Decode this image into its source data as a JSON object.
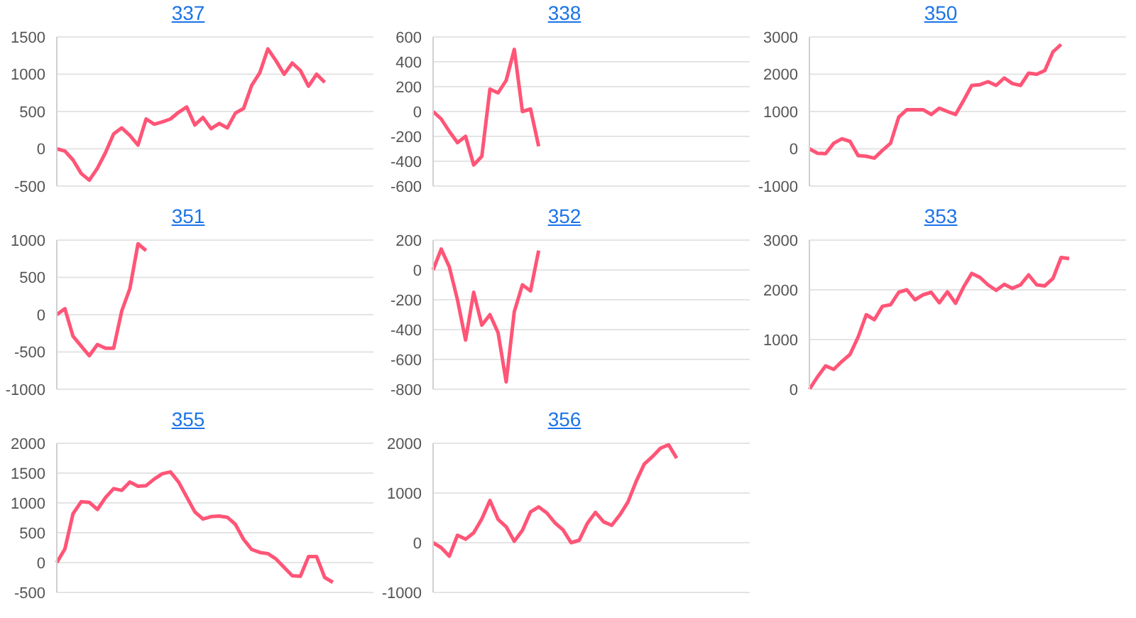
{
  "chart_data": [
    {
      "type": "line",
      "title": "337",
      "categories": [
        null,
        null,
        null,
        null,
        null,
        null,
        null,
        null,
        null,
        null,
        null,
        null,
        null,
        null,
        null,
        null,
        null,
        null,
        null,
        null,
        null,
        null,
        null,
        null,
        null,
        null,
        null,
        null,
        null,
        null,
        null,
        null,
        null,
        null,
        null,
        null,
        null,
        null,
        null,
        null
      ],
      "series": [
        {
          "color": "#ff5577",
          "values": [
            0,
            -30,
            -150,
            -330,
            -420,
            -260,
            -50,
            200,
            280,
            180,
            50,
            400,
            330,
            360,
            400,
            490,
            560,
            320,
            420,
            270,
            340,
            280,
            480,
            540,
            850,
            1020,
            1340,
            1180,
            1000,
            1150,
            1050,
            840,
            1000,
            890,
            null,
            null,
            null,
            null,
            null,
            null
          ]
        }
      ],
      "ylim": [
        -500,
        1500
      ],
      "yticks": [
        -500,
        0,
        500,
        1000,
        1500
      ],
      "grid": "y",
      "tick_labels": "y"
    },
    {
      "type": "line",
      "title": "338",
      "categories": [
        null,
        null,
        null,
        null,
        null,
        null,
        null,
        null,
        null,
        null,
        null,
        null,
        null,
        null,
        null,
        null,
        null,
        null,
        null,
        null,
        null,
        null,
        null,
        null,
        null,
        null,
        null,
        null,
        null,
        null,
        null,
        null,
        null,
        null,
        null,
        null,
        null,
        null,
        null,
        null
      ],
      "series": [
        {
          "color": "#ff5577",
          "values": [
            0,
            -60,
            -160,
            -250,
            -200,
            -430,
            -360,
            180,
            150,
            250,
            500,
            0,
            20,
            -280,
            null,
            null,
            null,
            null,
            null,
            null,
            null,
            null,
            null,
            null,
            null,
            null,
            null,
            null,
            null,
            null,
            null,
            null,
            null,
            null,
            null,
            null,
            null,
            null,
            null,
            null
          ]
        }
      ],
      "ylim": [
        -600,
        600
      ],
      "yticks": [
        -600,
        -400,
        -200,
        0,
        200,
        400,
        600
      ],
      "grid": "y",
      "tick_labels": "y"
    },
    {
      "type": "line",
      "title": "350",
      "categories": [
        null,
        null,
        null,
        null,
        null,
        null,
        null,
        null,
        null,
        null,
        null,
        null,
        null,
        null,
        null,
        null,
        null,
        null,
        null,
        null,
        null,
        null,
        null,
        null,
        null,
        null,
        null,
        null,
        null,
        null,
        null,
        null,
        null,
        null,
        null,
        null,
        null,
        null,
        null,
        null
      ],
      "series": [
        {
          "color": "#ff5577",
          "values": [
            0,
            -120,
            -130,
            150,
            270,
            200,
            -180,
            -200,
            -250,
            -40,
            150,
            850,
            1050,
            1050,
            1050,
            920,
            1090,
            1000,
            920,
            1300,
            1700,
            1720,
            1800,
            1700,
            1900,
            1750,
            1700,
            2030,
            2000,
            2100,
            2600,
            2800,
            null,
            null,
            null,
            null,
            null,
            null,
            null,
            null
          ]
        }
      ],
      "ylim": [
        -1000,
        3000
      ],
      "yticks": [
        -1000,
        0,
        1000,
        2000,
        3000
      ],
      "grid": "y",
      "tick_labels": "y"
    },
    {
      "type": "line",
      "title": "351",
      "categories": [
        null,
        null,
        null,
        null,
        null,
        null,
        null,
        null,
        null,
        null,
        null,
        null,
        null,
        null,
        null,
        null,
        null,
        null,
        null,
        null,
        null,
        null,
        null,
        null,
        null,
        null,
        null,
        null,
        null,
        null,
        null,
        null,
        null,
        null,
        null,
        null,
        null,
        null,
        null,
        null
      ],
      "series": [
        {
          "color": "#ff5577",
          "values": [
            0,
            80,
            -290,
            -420,
            -550,
            -400,
            -450,
            -450,
            50,
            350,
            950,
            860,
            null,
            null,
            null,
            null,
            null,
            null,
            null,
            null,
            null,
            null,
            null,
            null,
            null,
            null,
            null,
            null,
            null,
            null,
            null,
            null,
            null,
            null,
            null,
            null,
            null,
            null,
            null,
            null
          ]
        }
      ],
      "ylim": [
        -1000,
        1000
      ],
      "yticks": [
        -1000,
        -500,
        0,
        500,
        1000
      ],
      "grid": "y",
      "tick_labels": "y"
    },
    {
      "type": "line",
      "title": "352",
      "categories": [
        null,
        null,
        null,
        null,
        null,
        null,
        null,
        null,
        null,
        null,
        null,
        null,
        null,
        null,
        null,
        null,
        null,
        null,
        null,
        null,
        null,
        null,
        null,
        null,
        null,
        null,
        null,
        null,
        null,
        null,
        null,
        null,
        null,
        null,
        null,
        null,
        null,
        null,
        null,
        null
      ],
      "series": [
        {
          "color": "#ff5577",
          "values": [
            0,
            140,
            20,
            -200,
            -470,
            -150,
            -370,
            -300,
            -420,
            -750,
            -280,
            -100,
            -140,
            130,
            null,
            null,
            null,
            null,
            null,
            null,
            null,
            null,
            null,
            null,
            null,
            null,
            null,
            null,
            null,
            null,
            null,
            null,
            null,
            null,
            null,
            null,
            null,
            null,
            null,
            null
          ]
        }
      ],
      "ylim": [
        -800,
        200
      ],
      "yticks": [
        -800,
        -600,
        -400,
        -200,
        0,
        200
      ],
      "grid": "y",
      "tick_labels": "y"
    },
    {
      "type": "line",
      "title": "353",
      "categories": [
        null,
        null,
        null,
        null,
        null,
        null,
        null,
        null,
        null,
        null,
        null,
        null,
        null,
        null,
        null,
        null,
        null,
        null,
        null,
        null,
        null,
        null,
        null,
        null,
        null,
        null,
        null,
        null,
        null,
        null,
        null,
        null,
        null,
        null,
        null,
        null,
        null,
        null,
        null,
        null
      ],
      "series": [
        {
          "color": "#ff5577",
          "values": [
            0,
            250,
            470,
            400,
            560,
            700,
            1050,
            1500,
            1400,
            1670,
            1700,
            1950,
            2000,
            1800,
            1900,
            1950,
            1740,
            1960,
            1730,
            2060,
            2330,
            2250,
            2100,
            1990,
            2110,
            2030,
            2100,
            2300,
            2100,
            2080,
            2230,
            2650,
            2630,
            null,
            null,
            null,
            null,
            null,
            null,
            null
          ]
        }
      ],
      "ylim": [
        0,
        3000
      ],
      "yticks": [
        0,
        1000,
        2000,
        3000
      ],
      "grid": "y",
      "tick_labels": "y"
    },
    {
      "type": "line",
      "title": "355",
      "categories": [
        null,
        null,
        null,
        null,
        null,
        null,
        null,
        null,
        null,
        null,
        null,
        null,
        null,
        null,
        null,
        null,
        null,
        null,
        null,
        null,
        null,
        null,
        null,
        null,
        null,
        null,
        null,
        null,
        null,
        null,
        null,
        null,
        null,
        null,
        null,
        null,
        null,
        null,
        null,
        null
      ],
      "series": [
        {
          "color": "#ff5577",
          "values": [
            0,
            230,
            820,
            1020,
            1010,
            890,
            1090,
            1240,
            1210,
            1350,
            1280,
            1290,
            1400,
            1490,
            1520,
            1350,
            1100,
            850,
            730,
            770,
            780,
            760,
            640,
            390,
            220,
            170,
            150,
            60,
            -80,
            -220,
            -230,
            100,
            100,
            -250,
            -330,
            null,
            null,
            null,
            null,
            null
          ]
        }
      ],
      "ylim": [
        -500,
        2000
      ],
      "yticks": [
        -500,
        0,
        500,
        1000,
        1500,
        2000
      ],
      "grid": "y",
      "tick_labels": "y"
    },
    {
      "type": "line",
      "title": "356",
      "categories": [
        null,
        null,
        null,
        null,
        null,
        null,
        null,
        null,
        null,
        null,
        null,
        null,
        null,
        null,
        null,
        null,
        null,
        null,
        null,
        null,
        null,
        null,
        null,
        null,
        null,
        null,
        null,
        null,
        null,
        null,
        null,
        null,
        null,
        null,
        null,
        null,
        null,
        null,
        null,
        null
      ],
      "series": [
        {
          "color": "#ff5577",
          "values": [
            0,
            -100,
            -270,
            150,
            70,
            200,
            480,
            850,
            470,
            320,
            30,
            250,
            620,
            720,
            600,
            400,
            260,
            0,
            50,
            390,
            610,
            420,
            350,
            560,
            820,
            1230,
            1580,
            1730,
            1900,
            1970,
            1700,
            null,
            null,
            null,
            null,
            null,
            null,
            null,
            null,
            null
          ]
        }
      ],
      "ylim": [
        -1000,
        2000
      ],
      "yticks": [
        -1000,
        0,
        1000,
        2000
      ],
      "grid": "y",
      "tick_labels": "y"
    }
  ]
}
